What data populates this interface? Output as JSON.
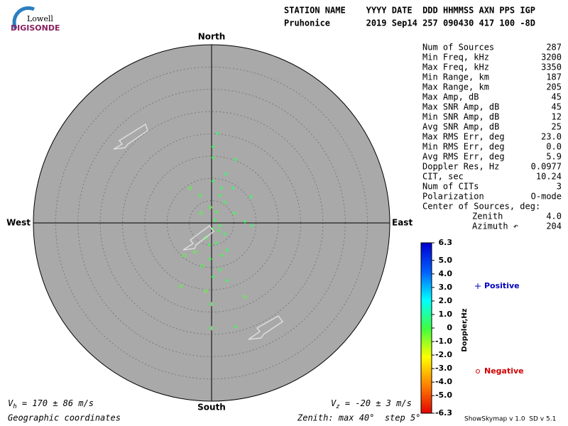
{
  "header": {
    "logo_top": "Lowell",
    "logo_bottom": "DIGISONDE",
    "columns": "STATION NAME    YYYY DATE  DDD HHMMSS AXN PPS IGP",
    "values": "Pruhonice       2019 Sep14 257 090430 417 100 -8D"
  },
  "stats": [
    [
      "Num of Sources",
      "287"
    ],
    [
      "Min Freq, kHz",
      "3200"
    ],
    [
      "Max Freq, kHz",
      "3350"
    ],
    [
      "Min Range, km",
      "187"
    ],
    [
      "Max Range, km",
      "205"
    ],
    [
      "Max Amp, dB",
      "45"
    ],
    [
      "Max SNR Amp, dB",
      "45"
    ],
    [
      "Min SNR Amp, dB",
      "12"
    ],
    [
      "Avg SNR Amp, dB",
      "25"
    ],
    [
      "Max RMS Err, deg",
      "23.0"
    ],
    [
      "Min RMS Err, deg",
      "0.0"
    ],
    [
      "Avg RMS Err, deg",
      "5.9"
    ],
    [
      "Doppler Res, Hz",
      "0.0977"
    ],
    [
      "CIT, sec",
      "10.24"
    ],
    [
      "Num of CITs",
      "3"
    ],
    [
      "Polarization",
      "O-mode"
    ],
    [
      "Center of Sources, deg:"
    ],
    [
      "Zenith",
      "4.0"
    ],
    [
      "Azimuth ↶",
      "204"
    ]
  ],
  "footer": {
    "vh_symbol": "V",
    "vh_sub": "h",
    "vh_text": " = 170 ± 86 m/s",
    "vz_symbol": "V",
    "vz_sub": "z",
    "vz_text": " = -20 ± 3 m/s",
    "coords": "Geographic coordinates",
    "zenith": "Zenith: max 40°  step 5°",
    "version": "ShowSkymap v 1.0  SD v 5.1"
  },
  "chart_data": {
    "type": "polar-scatter",
    "directions": {
      "north": "North",
      "south": "South",
      "east": "East",
      "west": "West"
    },
    "zenith_max": 40,
    "zenith_step": 5,
    "series": [
      {
        "name": "Positive",
        "color": "#0000c0",
        "marker": "+",
        "x": [
          1.4,
          0.3,
          0.3,
          5.4,
          3.2,
          0.3,
          2.2,
          4.8,
          1.9,
          8.8,
          2.9,
          1.1,
          5.1,
          7.5,
          9.1,
          1.9,
          0.3,
          2.9,
          1.1,
          3.5,
          -0.3,
          1.9,
          0.3,
          3.5,
          0,
          5.4,
          0,
          0.8,
          1.6,
          -0.5,
          2.2
        ],
        "y": [
          20.1,
          17.1,
          14.7,
          14.2,
          11.0,
          9.4,
          7.8,
          7.8,
          6.2,
          5.9,
          4.6,
          2.5,
          2.2,
          0.3,
          -0.6,
          -0.6,
          -1.3,
          -2.5,
          -4.5,
          -6.1,
          -8.1,
          -10.5,
          -12.1,
          -12.9,
          -18.2,
          -23.3,
          -23.6,
          0.6,
          -1.8,
          -4.9,
          -7.3
        ],
        "doppler": [
          0.5,
          0.3,
          0.2,
          0.4,
          0.6,
          0.2,
          0.3,
          0.5,
          0.2,
          0.4,
          0.3,
          0.1,
          0.2,
          0.3,
          0.4,
          0.2,
          0.1,
          0.3,
          0.2,
          0.2,
          0.1,
          0.2,
          0.1,
          0.3,
          0.1,
          0.2,
          0.1,
          0.2,
          0.1,
          0.2,
          0.1
        ]
      },
      {
        "name": "Negative",
        "color": "#d00000",
        "marker": "o",
        "x": [
          -4.9,
          -2.5,
          -0.3,
          -1.3,
          -3.7,
          -6.1,
          -2.1,
          -6.9,
          -1.3,
          7.5,
          -2.4
        ],
        "y": [
          7.8,
          6.2,
          3.5,
          -3.3,
          -6.5,
          -7.3,
          -9.7,
          -14.2,
          -15.3,
          -16.6,
          2.2
        ],
        "doppler": [
          -0.2,
          -0.1,
          -0.2,
          -0.1,
          -0.3,
          -0.2,
          -0.1,
          -0.2,
          -0.3,
          -0.2,
          -0.1
        ]
      }
    ],
    "colorbar": {
      "title": "Doppler,Hz",
      "lim": [
        -6.3,
        6.3
      ],
      "ticks": [
        6.3,
        {
          "value": 5,
          "label": "5.0"
        },
        {
          "value": 4,
          "label": "4.0"
        },
        {
          "value": 3,
          "label": "3.0"
        },
        {
          "value": 2,
          "label": "2.0"
        },
        {
          "value": 1,
          "label": "1.0"
        },
        0,
        {
          "value": -1,
          "label": "-1.0"
        },
        {
          "value": -2,
          "label": "-2.0"
        },
        {
          "value": -3,
          "label": "-3.0"
        },
        {
          "value": -4,
          "label": "-4.0"
        },
        {
          "value": -5,
          "label": "-5.0"
        },
        -6.3
      ]
    }
  }
}
